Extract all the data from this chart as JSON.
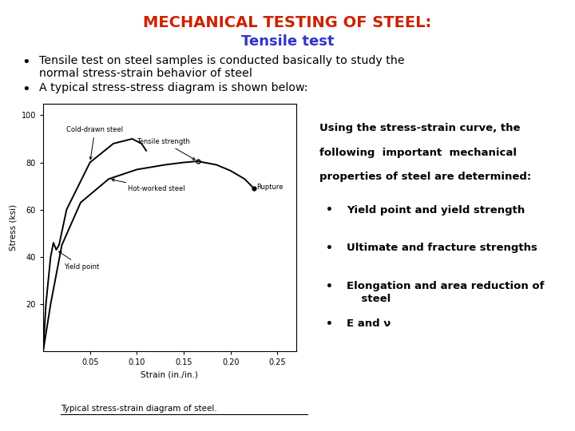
{
  "title_line1": "MECHANICAL TESTING OF STEEL:",
  "title_line2": "Tensile test",
  "title_color1": "#cc2200",
  "title_color2": "#3333cc",
  "bullet1_line1": "Tensile test on steel samples is conducted basically to study the",
  "bullet1_line2": "normal stress-strain behavior of steel",
  "bullet2": "A typical stress-stress diagram is shown below:",
  "right_text_line1": "Using the stress-strain curve, the",
  "right_text_line2": "following  important  mechanical",
  "right_text_line3": "properties of steel are determined:",
  "right_bullets": [
    "Yield point and yield strength",
    "Ultimate and fracture strengths",
    "Elongation and area reduction of\n    steel",
    "E and ν"
  ],
  "caption": "Typical stress-strain diagram of steel.",
  "background_color": "#ffffff",
  "text_color": "#000000",
  "xlabel": "Strain (in./in.)",
  "ylabel": "Stress (ksi)"
}
